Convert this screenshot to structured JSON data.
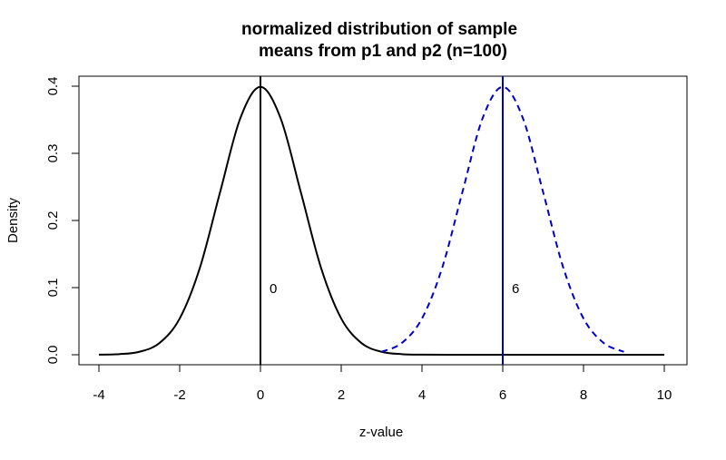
{
  "chart_data": {
    "type": "line",
    "title_lines": [
      "normalized distribution of sample",
      "means from p1 and p2 (n=100)"
    ],
    "xlabel": "z-value",
    "ylabel": "Density",
    "xlim": [
      -4,
      10
    ],
    "ylim": [
      0,
      0.4
    ],
    "x_ticks": [
      "-4",
      "-2",
      "0",
      "2",
      "4",
      "6",
      "8",
      "10"
    ],
    "y_ticks": [
      "0.0",
      "0.1",
      "0.2",
      "0.3",
      "0.4"
    ],
    "grid": false,
    "legend": "none",
    "series": [
      {
        "style": "solid",
        "color": "#000000",
        "x": [
          -4.0,
          -3.5,
          -3.0,
          -2.5,
          -2.0,
          -1.5,
          -1.0,
          -0.5,
          0.0,
          0.5,
          1.0,
          1.5,
          2.0,
          2.5,
          3.0,
          3.5,
          4.0,
          5.0,
          6.0,
          7.0,
          8.0,
          9.0,
          10.0
        ],
        "y": [
          0.0001,
          0.0009,
          0.0044,
          0.0175,
          0.054,
          0.1295,
          0.242,
          0.3521,
          0.3989,
          0.3521,
          0.242,
          0.1295,
          0.054,
          0.0175,
          0.0044,
          0.0009,
          0.0001,
          0.0,
          0.0,
          0.0,
          0.0,
          0.0,
          0.0
        ]
      },
      {
        "style": "dashed",
        "color": "#0000cc",
        "x": [
          3.0,
          3.5,
          4.0,
          4.5,
          5.0,
          5.5,
          6.0,
          6.5,
          7.0,
          7.5,
          8.0,
          8.5,
          9.0
        ],
        "y": [
          0.0044,
          0.0175,
          0.054,
          0.1295,
          0.242,
          0.3521,
          0.3989,
          0.3521,
          0.242,
          0.1295,
          0.054,
          0.0175,
          0.0044
        ]
      }
    ],
    "vlines": [
      {
        "x": 0,
        "label": "0",
        "label_y": 0.1,
        "color": "#000000"
      },
      {
        "x": 6,
        "label": "6",
        "label_y": 0.1,
        "color": "#0000cc"
      }
    ]
  }
}
